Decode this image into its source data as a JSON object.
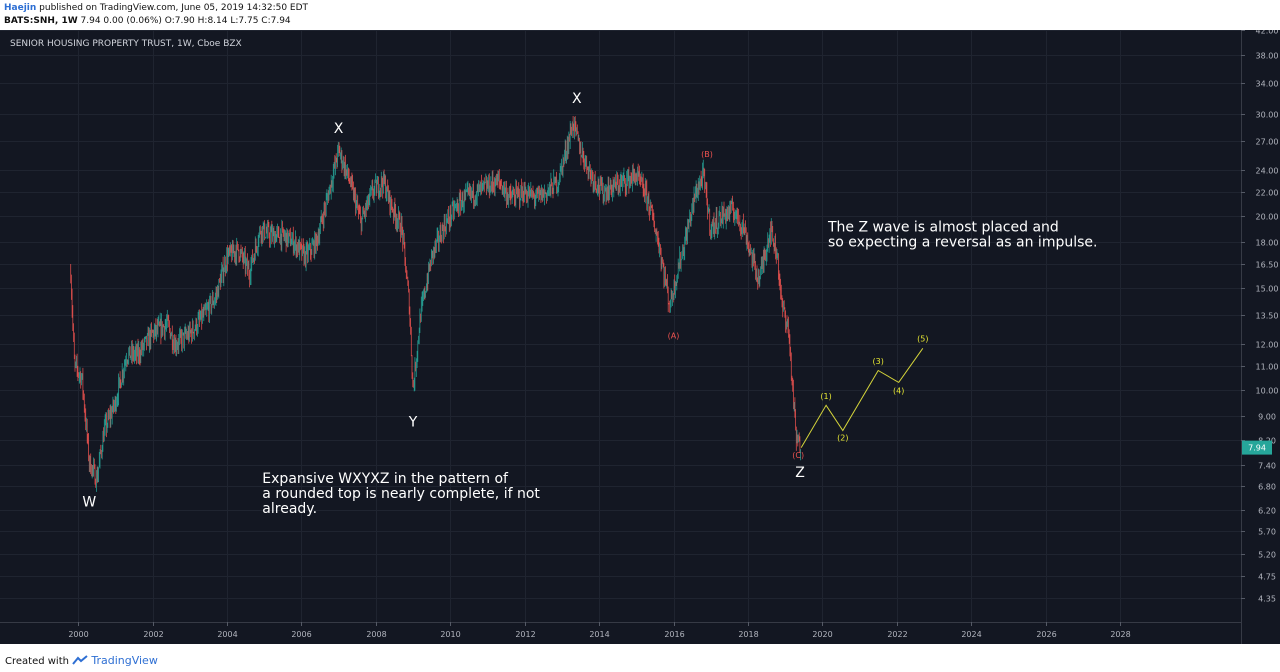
{
  "header": {
    "author": "Haejin",
    "published": "published on TradingView.com, June 05, 2019 14:32:50 EDT",
    "symbol": "BATS:SNH, 1W",
    "ohlc": "7.94  0.00 (0.06%)  O:7.90  H:8.14  L:7.75  C:7.94"
  },
  "chart_data": {
    "type": "line",
    "title": "SENIOR HOUSING PROPERTY TRUST, 1W, Cboe BZX",
    "xlabel": "",
    "ylabel": "",
    "scale": "log",
    "xlim": [
      1997.9,
      2031.25
    ],
    "ylim": [
      3.96,
      42.0
    ],
    "x_ticks": [
      "2000",
      "2002",
      "2004",
      "2006",
      "2008",
      "2010",
      "2012",
      "2014",
      "2016",
      "2018",
      "2020",
      "2022",
      "2024",
      "2026",
      "2028"
    ],
    "y_ticks": [
      "42.00",
      "38.00",
      "34.00",
      "30.00",
      "27.00",
      "24.00",
      "22.00",
      "20.00",
      "18.00",
      "16.50",
      "15.00",
      "13.50",
      "12.00",
      "11.00",
      "10.00",
      "9.00",
      "8.20",
      "7.40",
      "6.80",
      "6.20",
      "5.70",
      "5.20",
      "4.75",
      "4.35"
    ],
    "last_price": "7.94",
    "series": [
      {
        "values": [
          [
            1999.8,
            16.0
          ],
          [
            1999.9,
            11.0
          ],
          [
            2000.1,
            10.5
          ],
          [
            2000.3,
            7.5
          ],
          [
            2000.5,
            7.0
          ],
          [
            2000.7,
            8.5
          ],
          [
            2001.0,
            9.5
          ],
          [
            2001.3,
            11.5
          ],
          [
            2001.6,
            11.5
          ],
          [
            2002.0,
            12.5
          ],
          [
            2002.4,
            13.0
          ],
          [
            2002.6,
            12.0
          ],
          [
            2003.0,
            12.5
          ],
          [
            2003.4,
            13.5
          ],
          [
            2003.7,
            14.5
          ],
          [
            2004.0,
            17.0
          ],
          [
            2004.3,
            17.5
          ],
          [
            2004.6,
            16.0
          ],
          [
            2004.9,
            19.0
          ],
          [
            2005.2,
            18.5
          ],
          [
            2005.5,
            18.5
          ],
          [
            2005.8,
            18.0
          ],
          [
            2006.1,
            17.0
          ],
          [
            2006.4,
            18.0
          ],
          [
            2006.7,
            21.5
          ],
          [
            2007.0,
            26.0
          ],
          [
            2007.3,
            23.0
          ],
          [
            2007.6,
            19.5
          ],
          [
            2007.9,
            22.0
          ],
          [
            2008.2,
            23.0
          ],
          [
            2008.4,
            21.0
          ],
          [
            2008.7,
            19.0
          ],
          [
            2008.9,
            14.0
          ],
          [
            2009.0,
            10.0
          ],
          [
            2009.2,
            13.5
          ],
          [
            2009.5,
            17.0
          ],
          [
            2009.8,
            19.0
          ],
          [
            2010.1,
            20.5
          ],
          [
            2010.4,
            21.5
          ],
          [
            2010.7,
            22.0
          ],
          [
            2011.0,
            22.5
          ],
          [
            2011.3,
            23.0
          ],
          [
            2011.6,
            21.5
          ],
          [
            2012.0,
            22.0
          ],
          [
            2012.3,
            21.5
          ],
          [
            2012.6,
            22.0
          ],
          [
            2012.9,
            23.0
          ],
          [
            2013.3,
            29.0
          ],
          [
            2013.5,
            26.0
          ],
          [
            2013.8,
            23.5
          ],
          [
            2014.1,
            22.0
          ],
          [
            2014.4,
            22.5
          ],
          [
            2014.7,
            23.0
          ],
          [
            2015.0,
            23.5
          ],
          [
            2015.3,
            21.5
          ],
          [
            2015.6,
            18.0
          ],
          [
            2015.9,
            14.0
          ],
          [
            2016.1,
            16.0
          ],
          [
            2016.3,
            18.0
          ],
          [
            2016.6,
            22.0
          ],
          [
            2016.8,
            23.5
          ],
          [
            2017.0,
            19.0
          ],
          [
            2017.3,
            20.0
          ],
          [
            2017.6,
            20.5
          ],
          [
            2017.9,
            19.0
          ],
          [
            2018.1,
            17.0
          ],
          [
            2018.3,
            15.5
          ],
          [
            2018.6,
            19.0
          ],
          [
            2018.8,
            17.0
          ],
          [
            2018.9,
            14.0
          ],
          [
            2019.0,
            13.5
          ],
          [
            2019.1,
            12.5
          ],
          [
            2019.2,
            10.0
          ],
          [
            2019.3,
            8.2
          ],
          [
            2019.43,
            7.94
          ]
        ]
      },
      {
        "values": [
          [
            2019.43,
            7.94
          ],
          [
            2020.1,
            9.4
          ],
          [
            2020.55,
            8.5
          ],
          [
            2021.5,
            10.8
          ],
          [
            2022.05,
            10.3
          ],
          [
            2022.7,
            11.8
          ]
        ]
      }
    ],
    "annotations": [
      {
        "text": "W",
        "x": 2000.3,
        "y": 6.4
      },
      {
        "text": "X",
        "x": 2007.0,
        "y": 28.4
      },
      {
        "text": "Y",
        "x": 2009.0,
        "y": 8.8
      },
      {
        "text": "X",
        "x": 2013.4,
        "y": 32.0
      },
      {
        "text": "Z",
        "x": 2019.4,
        "y": 7.2
      },
      {
        "text": "(A)",
        "x": 2016.0,
        "y": 12.4
      },
      {
        "text": "(B)",
        "x": 2016.9,
        "y": 25.6
      },
      {
        "text": "(C)",
        "x": 2019.35,
        "y": 7.7
      },
      {
        "text": "(1)",
        "x": 2020.1,
        "y": 9.75
      },
      {
        "text": "(2)",
        "x": 2020.55,
        "y": 8.25
      },
      {
        "text": "(3)",
        "x": 2021.5,
        "y": 11.2
      },
      {
        "text": "(4)",
        "x": 2022.05,
        "y": 9.95
      },
      {
        "text": "(5)",
        "x": 2022.7,
        "y": 12.25
      }
    ],
    "notes": [
      {
        "lines": [
          "The Z wave is almost placed and",
          "so expecting a reversal as an impulse."
        ],
        "x": 2020.15,
        "y": 18.8
      },
      {
        "lines": [
          "Expansive WXYXZ in the pattern of",
          "a rounded top is nearly complete, if not",
          "already."
        ],
        "x": 2004.95,
        "y": 6.9
      }
    ],
    "colors": {
      "background": "#131722",
      "candle": "#b5b5b5",
      "up": "#26a69a",
      "down": "#ef5350",
      "projection": "#d5d53b",
      "wave_label": "#ffffff",
      "abc_label": "#ef5350",
      "impulse_label": "#e6e633",
      "price_badge": "#26a69a"
    }
  },
  "footer": {
    "created_with": "Created with",
    "brand": "TradingView"
  }
}
